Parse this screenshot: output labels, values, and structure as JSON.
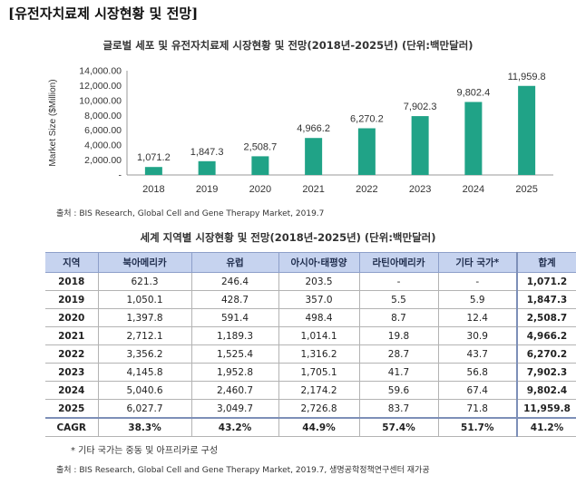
{
  "page_heading": "[유전자치료제 시장현황 및 전망]",
  "chart_title": "글로벌 세포 및 유전자치료제 시장현황 및 전망(2018년-2025년) (단위:백만달러)",
  "chart_data": {
    "type": "bar",
    "categories": [
      "2018",
      "2019",
      "2020",
      "2021",
      "2022",
      "2023",
      "2024",
      "2025"
    ],
    "values": [
      1071.2,
      1847.3,
      2508.7,
      4966.2,
      6270.2,
      7902.3,
      9802.4,
      11959.8
    ],
    "data_labels": [
      "1,071.2",
      "1,847.3",
      "2,508.7",
      "4,966.2",
      "6,270.2",
      "7,902.3",
      "9,802.4",
      "11,959.8"
    ],
    "yticks": [
      "-",
      "2,000.00",
      "4,000.00",
      "6,000.00",
      "8,000.00",
      "10,000.00",
      "12,000.00",
      "14,000.00"
    ],
    "ylabel": "Market Size ($Million)",
    "xlabel": "",
    "ylim": [
      0,
      14000
    ],
    "bar_color": "#20a387",
    "grid": false
  },
  "source_1": "출처 : BIS Research, Global Cell and Gene Therapy Market, 2019.7",
  "table_title": "세계 지역별 시장현황 및 전망(2018년-2025년) (단위:백만달러)",
  "table": {
    "headers": [
      "지역",
      "북아메리카",
      "유럽",
      "아시아·태평양",
      "라틴아메리카",
      "기타 국가*",
      "합계"
    ],
    "rows": [
      [
        "2018",
        "621.3",
        "246.4",
        "203.5",
        "-",
        "-",
        "1,071.2"
      ],
      [
        "2019",
        "1,050.1",
        "428.7",
        "357.0",
        "5.5",
        "5.9",
        "1,847.3"
      ],
      [
        "2020",
        "1,397.8",
        "591.4",
        "498.4",
        "8.7",
        "12.4",
        "2,508.7"
      ],
      [
        "2021",
        "2,712.1",
        "1,189.3",
        "1,014.1",
        "19.8",
        "30.9",
        "4,966.2"
      ],
      [
        "2022",
        "3,356.2",
        "1,525.4",
        "1,316.2",
        "28.7",
        "43.7",
        "6,270.2"
      ],
      [
        "2023",
        "4,145.8",
        "1,952.8",
        "1,705.1",
        "41.7",
        "56.8",
        "7,902.3"
      ],
      [
        "2024",
        "5,040.6",
        "2,460.7",
        "2,174.2",
        "59.6",
        "67.4",
        "9,802.4"
      ],
      [
        "2025",
        "6,027.7",
        "3,049.7",
        "2,726.8",
        "83.7",
        "71.8",
        "11,959.8"
      ]
    ],
    "cagr_row": [
      "CAGR",
      "38.3%",
      "43.2%",
      "44.9%",
      "57.4%",
      "51.7%",
      "41.2%"
    ]
  },
  "footnote": "* 기타 국가는 중동 및 아프리카로 구성",
  "source_2": "출처 : BIS Research, Global Cell and Gene Therapy Market, 2019.7, 생명공학정책연구센터 재가공"
}
